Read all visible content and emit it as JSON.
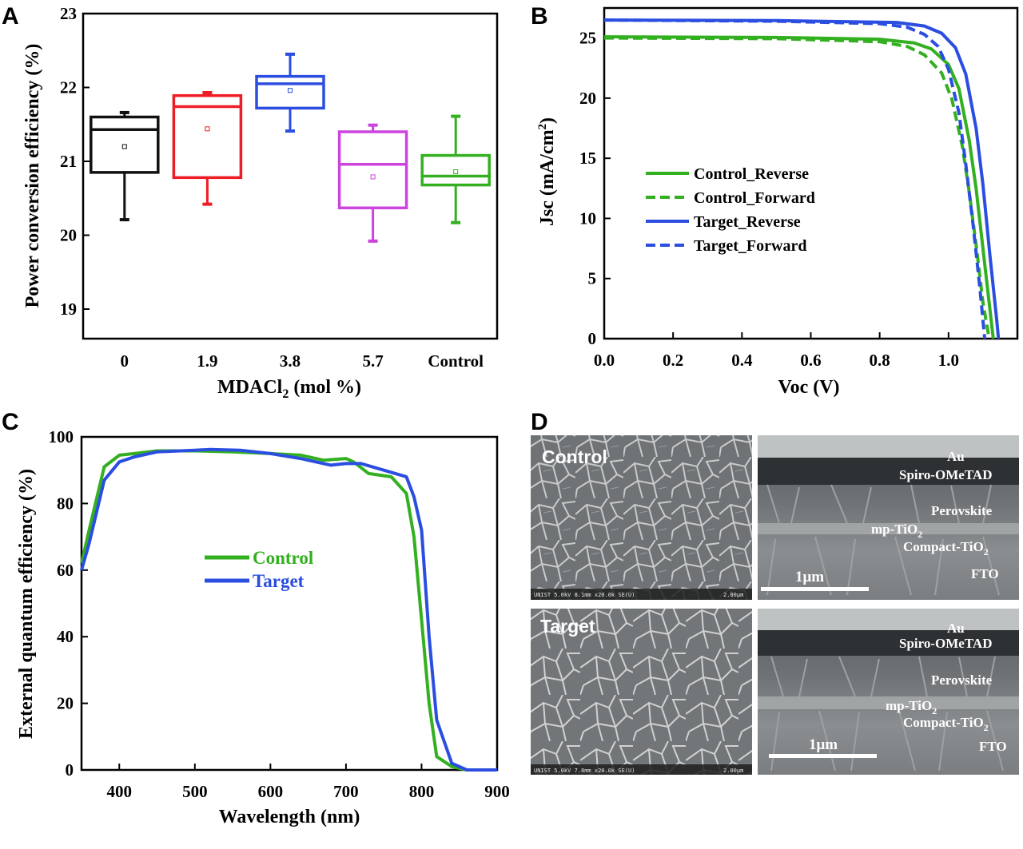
{
  "panels": {
    "a": {
      "label": "A"
    },
    "b": {
      "label": "B"
    },
    "c": {
      "label": "C"
    },
    "d": {
      "label": "D"
    }
  },
  "colors": {
    "black": "#111111",
    "red": "#ee1c24",
    "blue": "#2b4ee0",
    "magenta": "#cc44dd",
    "green": "#33b020"
  },
  "chart_data": [
    {
      "type": "box",
      "panel": "A",
      "xlabel_main": "MDACl",
      "xlabel_sub": "2",
      "xlabel_tail": " (mol %)",
      "ylabel": "Power conversion efficiency (%)",
      "ylim": [
        18.6,
        23
      ],
      "yticks": [
        "19",
        "20",
        "21",
        "22",
        "23"
      ],
      "categories": [
        "0",
        "1.9",
        "3.8",
        "5.7",
        "Control"
      ],
      "series_colors": [
        "#111111",
        "#ee1c24",
        "#2b4ee0",
        "#cc44dd",
        "#33b020"
      ],
      "boxes": [
        {
          "category": "0",
          "min": 20.21,
          "q1": 20.85,
          "median": 21.43,
          "q3": 21.6,
          "max": 21.66,
          "mean": 21.2
        },
        {
          "category": "1.9",
          "min": 20.42,
          "q1": 20.78,
          "median": 21.74,
          "q3": 21.89,
          "max": 21.93,
          "mean": 21.44
        },
        {
          "category": "3.8",
          "min": 21.41,
          "q1": 21.72,
          "median": 22.05,
          "q3": 22.15,
          "max": 22.45,
          "mean": 21.96
        },
        {
          "category": "5.7",
          "min": 19.92,
          "q1": 20.37,
          "median": 20.96,
          "q3": 21.4,
          "max": 21.49,
          "mean": 20.79
        },
        {
          "category": "Control",
          "min": 20.17,
          "q1": 20.68,
          "median": 20.8,
          "q3": 21.08,
          "max": 21.61,
          "mean": 20.86
        }
      ]
    },
    {
      "type": "line",
      "panel": "B",
      "xlabel": "Voc (V)",
      "ylabel_main": "Jsc (mA/cm",
      "ylabel_sup": "2",
      "ylabel_tail": ")",
      "xlim": [
        0,
        1.2
      ],
      "ylim": [
        0,
        27.5
      ],
      "xticks": [
        "0.0",
        "0.2",
        "0.4",
        "0.6",
        "0.8",
        "1.0"
      ],
      "yticks": [
        "0",
        "5",
        "10",
        "15",
        "20",
        "25"
      ],
      "series": [
        {
          "name": "Control_Reverse",
          "color": "#33b020",
          "dash": false,
          "x": [
            0,
            0.5,
            0.8,
            0.9,
            0.95,
            1.0,
            1.03,
            1.06,
            1.08,
            1.1,
            1.12,
            1.13
          ],
          "y": [
            25.1,
            25.05,
            24.9,
            24.6,
            24.1,
            22.8,
            20.8,
            16.5,
            12.5,
            7.5,
            2.5,
            0
          ]
        },
        {
          "name": "Control_Forward",
          "color": "#33b020",
          "dash": true,
          "x": [
            0,
            0.5,
            0.8,
            0.88,
            0.93,
            0.98,
            1.01,
            1.04,
            1.06,
            1.08,
            1.1,
            1.118
          ],
          "y": [
            25.0,
            24.95,
            24.7,
            24.3,
            23.6,
            22.1,
            19.9,
            16.0,
            12.2,
            7.8,
            3.0,
            0
          ]
        },
        {
          "name": "Target_Reverse",
          "color": "#2b4ee0",
          "dash": false,
          "x": [
            0,
            0.5,
            0.85,
            0.93,
            0.98,
            1.02,
            1.05,
            1.08,
            1.1,
            1.12,
            1.14,
            1.145
          ],
          "y": [
            26.5,
            26.45,
            26.3,
            26.0,
            25.4,
            24.2,
            22.0,
            17.5,
            12.8,
            7.0,
            1.5,
            0
          ]
        },
        {
          "name": "Target_Forward",
          "color": "#2b4ee0",
          "dash": true,
          "x": [
            0,
            0.5,
            0.8,
            0.88,
            0.93,
            0.97,
            1.0,
            1.03,
            1.05,
            1.07,
            1.09,
            1.105
          ],
          "y": [
            26.5,
            26.4,
            26.2,
            25.9,
            25.3,
            24.3,
            22.4,
            18.8,
            14.5,
            9.8,
            4.5,
            0
          ]
        }
      ]
    },
    {
      "type": "line",
      "panel": "C",
      "xlabel": "Wavelength (nm)",
      "ylabel": "External quantum efficiency (%)",
      "xlim": [
        350,
        900
      ],
      "ylim": [
        0,
        100
      ],
      "xticks": [
        "400",
        "500",
        "600",
        "700",
        "800",
        "900"
      ],
      "yticks": [
        "0",
        "20",
        "40",
        "60",
        "80",
        "100"
      ],
      "series": [
        {
          "name": "Control",
          "color": "#33b020",
          "x": [
            350,
            360,
            380,
            400,
            420,
            450,
            500,
            550,
            600,
            640,
            670,
            700,
            710,
            730,
            760,
            780,
            790,
            800,
            810,
            820,
            840,
            860,
            880,
            900
          ],
          "y": [
            62,
            72,
            91,
            94.5,
            95,
            95.8,
            95.8,
            95.5,
            95,
            94.5,
            93,
            93.5,
            92.5,
            89,
            88,
            83,
            70,
            45,
            20,
            4,
            1,
            0,
            0,
            0
          ]
        },
        {
          "name": "Target",
          "color": "#2b4ee0",
          "x": [
            350,
            360,
            380,
            400,
            420,
            450,
            500,
            520,
            560,
            600,
            640,
            680,
            700,
            720,
            750,
            780,
            790,
            800,
            810,
            820,
            840,
            860,
            880,
            900
          ],
          "y": [
            60,
            68,
            87,
            92.5,
            94,
            95.5,
            96,
            96.2,
            96,
            95,
            93.5,
            91.5,
            92,
            92,
            90,
            88,
            82,
            72,
            40,
            15,
            2,
            0,
            0,
            0
          ]
        }
      ]
    }
  ],
  "sem": {
    "tl": {
      "label": "Control",
      "info": "UNIST 5.0kV 8.1mm x20.0k SE(U)",
      "scale": "2.00μm"
    },
    "bl": {
      "label": "Target",
      "info": "UNIST 5.0kV 7.8mm x20.0k SE(U)",
      "scale": "2.00μm"
    },
    "tr": {
      "au": "Au",
      "spiro": "Spiro-OMeTAD",
      "perov": "Perovskite",
      "mp": "mp-TiO",
      "mp_sub": "2",
      "compact": "Compact-TiO",
      "compact_sub": "2",
      "fto": "FTO",
      "scale": "1μm"
    },
    "br": {
      "au": "Au",
      "spiro": "Spiro-OMeTAD",
      "perov": "Perovskite",
      "mp": "mp-TiO",
      "mp_sub": "2",
      "compact": "Compact-TiO",
      "compact_sub": "2",
      "fto": "FTO",
      "scale": "1μm"
    }
  }
}
